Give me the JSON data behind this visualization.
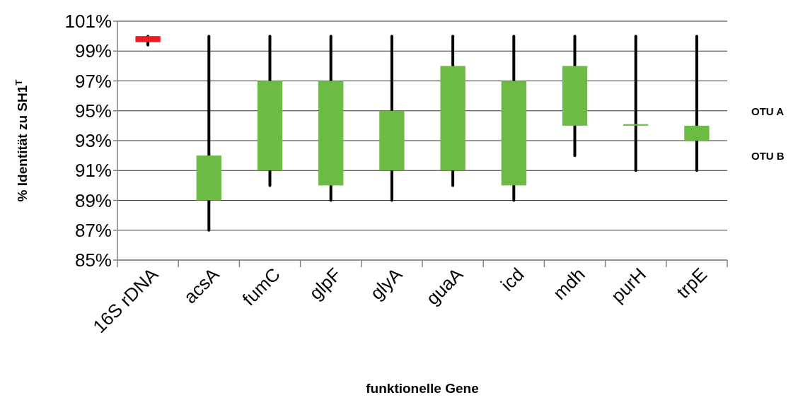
{
  "chart_data": {
    "type": "candlestick",
    "xlabel": "funktionelle Gene",
    "ylabel": "% Identität zu SH1$^{T}$",
    "categories": [
      "16S rDNA",
      "acsA",
      "fumC",
      "glpF",
      "glyA",
      "guaA",
      "icd",
      "mdh",
      "purH",
      "trpE"
    ],
    "ohlc": [
      [
        100,
        100,
        99.4,
        99.6
      ],
      [
        89,
        100,
        87,
        92
      ],
      [
        91,
        100,
        90,
        97
      ],
      [
        90,
        100,
        89,
        97
      ],
      [
        91,
        100,
        89,
        95
      ],
      [
        91,
        100,
        90,
        98
      ],
      [
        90,
        100,
        89,
        97
      ],
      [
        94,
        100,
        92,
        98
      ],
      [
        94,
        100,
        91,
        94.1
      ],
      [
        93,
        100,
        91,
        94
      ]
    ],
    "colors": [
      "#ed1c24",
      "#6cbb45",
      "#6cbb45",
      "#6cbb45",
      "#6cbb45",
      "#6cbb45",
      "#6cbb45",
      "#6cbb45",
      "#6cbb45",
      "#6cbb45"
    ],
    "ylim": [
      85,
      101
    ],
    "yticks": [
      {
        "value": 85,
        "label": "85%"
      },
      {
        "value": 87,
        "label": "87%"
      },
      {
        "value": 89,
        "label": "89%"
      },
      {
        "value": 91,
        "label": "91%"
      },
      {
        "value": 93,
        "label": "93%"
      },
      {
        "value": 95,
        "label": "95%"
      },
      {
        "value": 97,
        "label": "97%"
      },
      {
        "value": 99,
        "label": "99%"
      },
      {
        "value": 101,
        "label": "101%"
      }
    ],
    "grid": "y",
    "annotations": [
      "OTU A",
      "OTU B"
    ]
  }
}
